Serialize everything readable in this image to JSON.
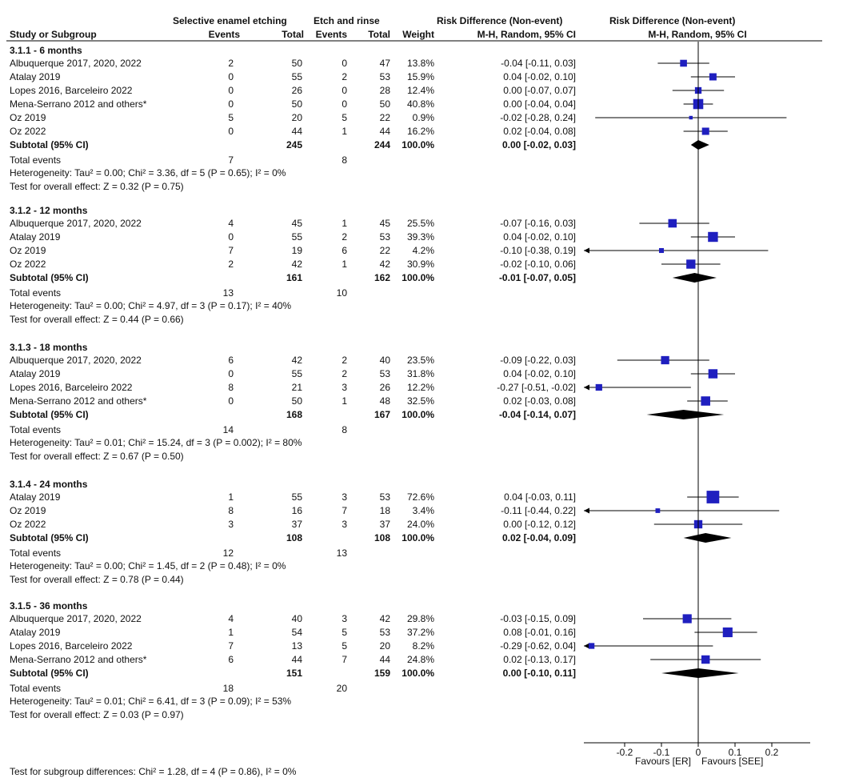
{
  "header": {
    "group1": "Selective enamel etching",
    "group2": "Etch and rinse",
    "rd_col": "Risk Difference (Non-event)",
    "rd_method": "M-H, Random, 95% CI",
    "plot_title": "Risk Difference (Non-event)",
    "plot_method": "M-H, Random, 95% CI",
    "study": "Study or Subgroup",
    "events": "Events",
    "total": "Total",
    "weight": "Weight"
  },
  "footer": {
    "subgroup_diff": "Test for subgroup differences: Chi² = 1.28, df = 4 (P = 0.86), I² = 0%",
    "favours_left": "Favours [ER]",
    "favours_right": "Favours [SEE]"
  },
  "chart_data": {
    "type": "forest",
    "xlim": [
      -0.3,
      0.3
    ],
    "ticks": [
      {
        "v": -0.2,
        "label": "-0.2"
      },
      {
        "v": -0.1,
        "label": "-0.1"
      },
      {
        "v": 0,
        "label": "0"
      },
      {
        "v": 0.1,
        "label": "0.1"
      },
      {
        "v": 0.2,
        "label": "0.2"
      }
    ],
    "subgroups": [
      {
        "title": "3.1.1 - 6 months",
        "studies": [
          {
            "name": "Albuquerque 2017, 2020, 2022",
            "e1": "2",
            "t1": "50",
            "e2": "0",
            "t2": "47",
            "weight": "13.8%",
            "ci_text": "-0.04 [-0.11, 0.03]",
            "est": -0.04,
            "lo": -0.11,
            "hi": 0.03
          },
          {
            "name": "Atalay 2019",
            "e1": "0",
            "t1": "55",
            "e2": "2",
            "t2": "53",
            "weight": "15.9%",
            "ci_text": "0.04 [-0.02, 0.10]",
            "est": 0.04,
            "lo": -0.02,
            "hi": 0.1
          },
          {
            "name": "Lopes 2016, Barceleiro 2022",
            "e1": "0",
            "t1": "26",
            "e2": "0",
            "t2": "28",
            "weight": "12.4%",
            "ci_text": "0.00 [-0.07, 0.07]",
            "est": 0.0,
            "lo": -0.07,
            "hi": 0.07
          },
          {
            "name": "Mena-Serrano 2012 and others*",
            "e1": "0",
            "t1": "50",
            "e2": "0",
            "t2": "50",
            "weight": "40.8%",
            "ci_text": "0.00 [-0.04, 0.04]",
            "est": 0.0,
            "lo": -0.04,
            "hi": 0.04
          },
          {
            "name": "Oz 2019",
            "e1": "5",
            "t1": "20",
            "e2": "5",
            "t2": "22",
            "weight": "0.9%",
            "ci_text": "-0.02 [-0.28, 0.24]",
            "est": -0.02,
            "lo": -0.28,
            "hi": 0.24
          },
          {
            "name": "Oz 2022",
            "e1": "0",
            "t1": "44",
            "e2": "1",
            "t2": "44",
            "weight": "16.2%",
            "ci_text": "0.02 [-0.04, 0.08]",
            "est": 0.02,
            "lo": -0.04,
            "hi": 0.08
          }
        ],
        "subtotal": {
          "label": "Subtotal (95% CI)",
          "t1": "245",
          "t2": "244",
          "weight": "100.0%",
          "ci_text": "0.00 [-0.02, 0.03]",
          "est": 0.0,
          "lo": -0.02,
          "hi": 0.03
        },
        "total_events": {
          "label": "Total events",
          "e1": "7",
          "e2": "8"
        },
        "heterogeneity": "Heterogeneity: Tau² = 0.00; Chi² = 3.36, df = 5 (P = 0.65); I² = 0%",
        "overall": "Test for overall effect: Z = 0.32 (P = 0.75)"
      },
      {
        "title": "3.1.2 - 12 months",
        "studies": [
          {
            "name": "Albuquerque 2017, 2020, 2022",
            "e1": "4",
            "t1": "45",
            "e2": "1",
            "t2": "45",
            "weight": "25.5%",
            "ci_text": "-0.07 [-0.16, 0.03]",
            "est": -0.07,
            "lo": -0.16,
            "hi": 0.03
          },
          {
            "name": "Atalay 2019",
            "e1": "0",
            "t1": "55",
            "e2": "2",
            "t2": "53",
            "weight": "39.3%",
            "ci_text": "0.04 [-0.02, 0.10]",
            "est": 0.04,
            "lo": -0.02,
            "hi": 0.1
          },
          {
            "name": "Oz 2019",
            "e1": "7",
            "t1": "19",
            "e2": "6",
            "t2": "22",
            "weight": "4.2%",
            "ci_text": "-0.10 [-0.38, 0.19]",
            "est": -0.1,
            "lo": -0.38,
            "hi": 0.19
          },
          {
            "name": "Oz 2022",
            "e1": "2",
            "t1": "42",
            "e2": "1",
            "t2": "42",
            "weight": "30.9%",
            "ci_text": "-0.02 [-0.10, 0.06]",
            "est": -0.02,
            "lo": -0.1,
            "hi": 0.06
          }
        ],
        "subtotal": {
          "label": "Subtotal (95% CI)",
          "t1": "161",
          "t2": "162",
          "weight": "100.0%",
          "ci_text": "-0.01 [-0.07, 0.05]",
          "est": -0.01,
          "lo": -0.07,
          "hi": 0.05
        },
        "total_events": {
          "label": "Total events",
          "e1": "13",
          "e2": "10"
        },
        "heterogeneity": "Heterogeneity: Tau² = 0.00; Chi² = 4.97, df = 3 (P = 0.17); I² = 40%",
        "overall": "Test for overall effect: Z = 0.44 (P = 0.66)"
      },
      {
        "title": "3.1.3 - 18 months",
        "studies": [
          {
            "name": "Albuquerque 2017, 2020, 2022",
            "e1": "6",
            "t1": "42",
            "e2": "2",
            "t2": "40",
            "weight": "23.5%",
            "ci_text": "-0.09 [-0.22, 0.03]",
            "est": -0.09,
            "lo": -0.22,
            "hi": 0.03
          },
          {
            "name": "Atalay 2019",
            "e1": "0",
            "t1": "55",
            "e2": "2",
            "t2": "53",
            "weight": "31.8%",
            "ci_text": "0.04 [-0.02, 0.10]",
            "est": 0.04,
            "lo": -0.02,
            "hi": 0.1
          },
          {
            "name": "Lopes 2016, Barceleiro 2022",
            "e1": "8",
            "t1": "21",
            "e2": "3",
            "t2": "26",
            "weight": "12.2%",
            "ci_text": "-0.27 [-0.51, -0.02]",
            "est": -0.27,
            "lo": -0.51,
            "hi": -0.02
          },
          {
            "name": "Mena-Serrano 2012 and others*",
            "e1": "0",
            "t1": "50",
            "e2": "1",
            "t2": "48",
            "weight": "32.5%",
            "ci_text": "0.02 [-0.03, 0.08]",
            "est": 0.02,
            "lo": -0.03,
            "hi": 0.08
          }
        ],
        "subtotal": {
          "label": "Subtotal (95% CI)",
          "t1": "168",
          "t2": "167",
          "weight": "100.0%",
          "ci_text": "-0.04 [-0.14, 0.07]",
          "est": -0.04,
          "lo": -0.14,
          "hi": 0.07
        },
        "total_events": {
          "label": "Total events",
          "e1": "14",
          "e2": "8"
        },
        "heterogeneity": "Heterogeneity: Tau² = 0.01; Chi² = 15.24, df = 3 (P = 0.002); I² = 80%",
        "overall": "Test for overall effect: Z = 0.67 (P = 0.50)"
      },
      {
        "title": "3.1.4 - 24 months",
        "studies": [
          {
            "name": "Atalay 2019",
            "e1": "1",
            "t1": "55",
            "e2": "3",
            "t2": "53",
            "weight": "72.6%",
            "ci_text": "0.04 [-0.03, 0.11]",
            "est": 0.04,
            "lo": -0.03,
            "hi": 0.11
          },
          {
            "name": "Oz 2019",
            "e1": "8",
            "t1": "16",
            "e2": "7",
            "t2": "18",
            "weight": "3.4%",
            "ci_text": "-0.11 [-0.44, 0.22]",
            "est": -0.11,
            "lo": -0.44,
            "hi": 0.22
          },
          {
            "name": "Oz 2022",
            "e1": "3",
            "t1": "37",
            "e2": "3",
            "t2": "37",
            "weight": "24.0%",
            "ci_text": "0.00 [-0.12, 0.12]",
            "est": 0.0,
            "lo": -0.12,
            "hi": 0.12
          }
        ],
        "subtotal": {
          "label": "Subtotal (95% CI)",
          "t1": "108",
          "t2": "108",
          "weight": "100.0%",
          "ci_text": "0.02 [-0.04, 0.09]",
          "est": 0.02,
          "lo": -0.04,
          "hi": 0.09
        },
        "total_events": {
          "label": "Total events",
          "e1": "12",
          "e2": "13"
        },
        "heterogeneity": "Heterogeneity: Tau² = 0.00; Chi² = 1.45, df = 2 (P = 0.48); I² = 0%",
        "overall": "Test for overall effect: Z = 0.78 (P = 0.44)"
      },
      {
        "title": "3.1.5 - 36 months",
        "studies": [
          {
            "name": "Albuquerque 2017, 2020, 2022",
            "e1": "4",
            "t1": "40",
            "e2": "3",
            "t2": "42",
            "weight": "29.8%",
            "ci_text": "-0.03 [-0.15, 0.09]",
            "est": -0.03,
            "lo": -0.15,
            "hi": 0.09
          },
          {
            "name": "Atalay 2019",
            "e1": "1",
            "t1": "54",
            "e2": "5",
            "t2": "53",
            "weight": "37.2%",
            "ci_text": "0.08 [-0.01, 0.16]",
            "est": 0.08,
            "lo": -0.01,
            "hi": 0.16
          },
          {
            "name": "Lopes 2016, Barceleiro 2022",
            "e1": "7",
            "t1": "13",
            "e2": "5",
            "t2": "20",
            "weight": "8.2%",
            "ci_text": "-0.29 [-0.62, 0.04]",
            "est": -0.29,
            "lo": -0.62,
            "hi": 0.04
          },
          {
            "name": "Mena-Serrano 2012 and others*",
            "e1": "6",
            "t1": "44",
            "e2": "7",
            "t2": "44",
            "weight": "24.8%",
            "ci_text": "0.02 [-0.13, 0.17]",
            "est": 0.02,
            "lo": -0.13,
            "hi": 0.17
          }
        ],
        "subtotal": {
          "label": "Subtotal (95% CI)",
          "t1": "151",
          "t2": "159",
          "weight": "100.0%",
          "ci_text": "0.00 [-0.10, 0.11]",
          "est": 0.0,
          "lo": -0.1,
          "hi": 0.11
        },
        "total_events": {
          "label": "Total events",
          "e1": "18",
          "e2": "20"
        },
        "heterogeneity": "Heterogeneity: Tau² = 0.01; Chi² = 6.41, df = 3 (P = 0.09); I² = 53%",
        "overall": "Test for overall effect: Z = 0.03 (P = 0.97)"
      }
    ],
    "colors": {
      "study_marker": "#1f1fbf",
      "diamond": "#000000",
      "line": "#000000"
    }
  }
}
